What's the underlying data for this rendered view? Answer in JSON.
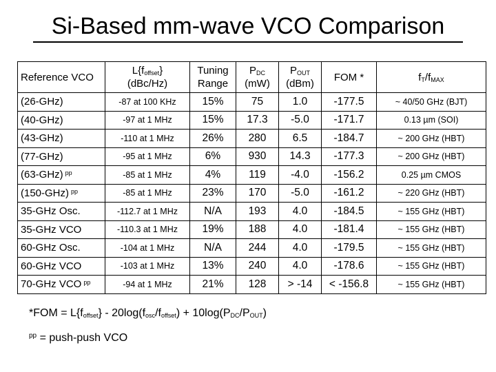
{
  "title": "Si-Based mm-wave VCO Comparison",
  "table": {
    "headers": {
      "ref": "Reference VCO",
      "l_pre": "L{f",
      "l_sub": "offset",
      "l_post": "}",
      "l_unit": "(dBc/Hz)",
      "tuning_1": "Tuning",
      "tuning_2": "Range",
      "pdc_main": "P",
      "pdc_sub": "DC",
      "pdc_unit": "(mW)",
      "pout_main": "P",
      "pout_sub": "OUT",
      "pout_unit": "(dBm)",
      "fom": "FOM *",
      "ft_a": "f",
      "ft_a_sub": "T",
      "ft_b": "/f",
      "ft_b_sub": "MAX"
    },
    "rows": [
      {
        "ref": "(26-GHz)",
        "pp": "",
        "l": "-87 at 100 KHz",
        "tuning": "15%",
        "pdc": "75",
        "pout": "1.0",
        "fom": "-177.5",
        "ft": "~ 40/50 GHz (BJT)"
      },
      {
        "ref": "(40-GHz)",
        "pp": "",
        "l": "-97 at 1 MHz",
        "tuning": "15%",
        "pdc": "17.3",
        "pout": "-5.0",
        "fom": "-171.7",
        "ft": "0.13 µm (SOI)"
      },
      {
        "ref": "(43-GHz)",
        "pp": "",
        "l": "-110 at 1 MHz",
        "tuning": "26%",
        "pdc": "280",
        "pout": "6.5",
        "fom": "-184.7",
        "ft": "~ 200 GHz (HBT)"
      },
      {
        "ref": "(77-GHz)",
        "pp": "",
        "l": "-95 at 1 MHz",
        "tuning": "6%",
        "pdc": "930",
        "pout": "14.3",
        "fom": "-177.3",
        "ft": "~ 200 GHz (HBT)"
      },
      {
        "ref": "(63-GHz)",
        "pp": "pp",
        "l": "-85 at 1 MHz",
        "tuning": "4%",
        "pdc": "119",
        "pout": "-4.0",
        "fom": "-156.2",
        "ft": "0.25 µm CMOS"
      },
      {
        "ref": "(150-GHz)",
        "pp": "pp",
        "l": "-85 at 1 MHz",
        "tuning": "23%",
        "pdc": "170",
        "pout": "-5.0",
        "fom": "-161.2",
        "ft": "~ 220 GHz (HBT)"
      },
      {
        "ref": "35-GHz Osc.",
        "pp": "",
        "l": "-112.7 at 1 MHz",
        "tuning": "N/A",
        "pdc": "193",
        "pout": "4.0",
        "fom": "-184.5",
        "ft": "~ 155 GHz (HBT)"
      },
      {
        "ref": "35-GHz VCO",
        "pp": "",
        "l": "-110.3 at 1 MHz",
        "tuning": "19%",
        "pdc": "188",
        "pout": "4.0",
        "fom": "-181.4",
        "ft": "~ 155 GHz (HBT)"
      },
      {
        "ref": "60-GHz Osc.",
        "pp": "",
        "l": "-104 at 1 MHz",
        "tuning": "N/A",
        "pdc": "244",
        "pout": "4.0",
        "fom": "-179.5",
        "ft": "~ 155 GHz (HBT)"
      },
      {
        "ref": "60-GHz VCO",
        "pp": "",
        "l": "-103 at 1 MHz",
        "tuning": "13%",
        "pdc": "240",
        "pout": "4.0",
        "fom": "-178.6",
        "ft": "~ 155 GHz (HBT)"
      },
      {
        "ref": "70-GHz VCO",
        "pp": "pp",
        "l": "-94 at 1 MHz",
        "tuning": "21%",
        "pdc": "128",
        "pout": "> -14",
        "fom": "< -156.8",
        "ft": "~ 155 GHz (HBT)"
      }
    ]
  },
  "footnotes": {
    "fom_a": "*FOM = L{f",
    "fom_a_sub": "offset",
    "fom_b": "} - 20log(f",
    "fom_b_sub": "osc",
    "fom_c": "/f",
    "fom_c_sub": "offset",
    "fom_d": ") + 10log(P",
    "fom_d_sub": "DC",
    "fom_e": "/P",
    "fom_e_sub": "OUT",
    "fom_f": ")",
    "pp_mark": "pp",
    "pp_text": " = push-push VCO"
  }
}
